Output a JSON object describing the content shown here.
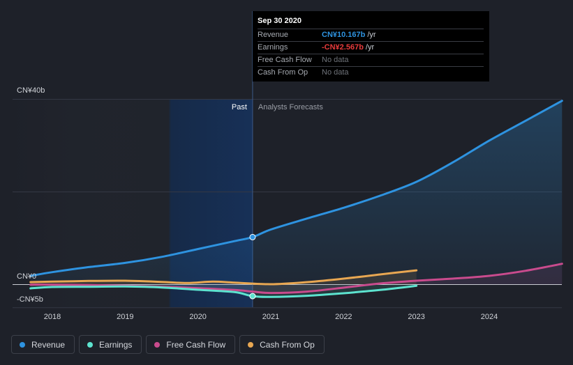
{
  "chart_data": {
    "type": "line",
    "y_unit": "CN¥ billions",
    "ylim": [
      -5,
      40
    ],
    "y_ticks": [
      {
        "value": 40,
        "label": "CN¥40b"
      },
      {
        "value": 0,
        "label": "CN¥0"
      },
      {
        "value": -5,
        "label": "-CN¥5b"
      }
    ],
    "xlim": [
      2017.7,
      2025.0
    ],
    "x_ticks": [
      {
        "value": 2018,
        "label": "2018"
      },
      {
        "value": 2019,
        "label": "2019"
      },
      {
        "value": 2020,
        "label": "2020"
      },
      {
        "value": 2021,
        "label": "2021"
      },
      {
        "value": 2022,
        "label": "2022"
      },
      {
        "value": 2023,
        "label": "2023"
      },
      {
        "value": 2024,
        "label": "2024"
      }
    ],
    "divider_x": 2020.75,
    "past_label": "Past",
    "forecast_label": "Analysts Forecasts",
    "series": [
      {
        "name": "Revenue",
        "color": "#2e93e0",
        "points": [
          [
            2017.7,
            1.8
          ],
          [
            2018.0,
            2.6
          ],
          [
            2018.5,
            3.7
          ],
          [
            2019.0,
            4.6
          ],
          [
            2019.5,
            5.9
          ],
          [
            2020.0,
            7.6
          ],
          [
            2020.5,
            9.3
          ],
          [
            2020.75,
            10.167
          ],
          [
            2021.0,
            11.8
          ],
          [
            2021.5,
            14.2
          ],
          [
            2022.0,
            16.5
          ],
          [
            2022.5,
            19.1
          ],
          [
            2023.0,
            22.1
          ],
          [
            2023.5,
            26.3
          ],
          [
            2024.0,
            31.0
          ],
          [
            2024.5,
            35.3
          ],
          [
            2025.0,
            39.6
          ]
        ]
      },
      {
        "name": "Earnings",
        "color": "#5de3cf",
        "points": [
          [
            2017.7,
            -0.9
          ],
          [
            2018.0,
            -0.6
          ],
          [
            2018.5,
            -0.55
          ],
          [
            2019.0,
            -0.5
          ],
          [
            2019.5,
            -0.7
          ],
          [
            2020.0,
            -1.2
          ],
          [
            2020.5,
            -1.7
          ],
          [
            2020.75,
            -2.567
          ],
          [
            2021.0,
            -2.75
          ],
          [
            2021.5,
            -2.5
          ],
          [
            2022.0,
            -1.95
          ],
          [
            2022.5,
            -1.25
          ],
          [
            2023.0,
            -0.35
          ]
        ]
      },
      {
        "name": "Free Cash Flow",
        "color": "#c94b8d",
        "points": [
          [
            2017.7,
            -0.1
          ],
          [
            2018.0,
            -0.1
          ],
          [
            2018.5,
            -0.2
          ],
          [
            2019.0,
            -0.35
          ],
          [
            2019.5,
            -0.55
          ],
          [
            2020.0,
            -0.85
          ],
          [
            2020.5,
            -1.25
          ],
          [
            2020.75,
            -1.6
          ],
          [
            2021.0,
            -1.9
          ],
          [
            2021.5,
            -1.6
          ],
          [
            2022.0,
            -0.75
          ],
          [
            2022.5,
            0.15
          ],
          [
            2023.0,
            0.75
          ],
          [
            2023.5,
            1.2
          ],
          [
            2024.0,
            1.8
          ],
          [
            2024.5,
            2.9
          ],
          [
            2025.0,
            4.4
          ]
        ]
      },
      {
        "name": "Cash From Op",
        "color": "#e8a752",
        "points": [
          [
            2017.7,
            0.45
          ],
          [
            2018.0,
            0.55
          ],
          [
            2018.5,
            0.7
          ],
          [
            2019.0,
            0.75
          ],
          [
            2019.5,
            0.5
          ],
          [
            2019.85,
            0.25
          ],
          [
            2020.2,
            0.55
          ],
          [
            2020.5,
            0.35
          ],
          [
            2021.0,
            0.0
          ],
          [
            2021.5,
            0.45
          ],
          [
            2022.0,
            1.2
          ],
          [
            2022.5,
            2.1
          ],
          [
            2023.0,
            3.0
          ]
        ]
      }
    ]
  },
  "tooltip": {
    "date": "Sep 30 2020",
    "rows": [
      {
        "label": "Revenue",
        "value": "CN¥10.167b",
        "unit": "/yr",
        "color": "#2e93e0"
      },
      {
        "label": "Earnings",
        "value": "-CN¥2.567b",
        "unit": "/yr",
        "color": "#e83b3b"
      },
      {
        "label": "Free Cash Flow",
        "value": "No data",
        "unit": ""
      },
      {
        "label": "Cash From Op",
        "value": "No data",
        "unit": ""
      }
    ]
  },
  "legend": [
    {
      "label": "Revenue",
      "color": "#2e93e0"
    },
    {
      "label": "Earnings",
      "color": "#5de3cf"
    },
    {
      "label": "Free Cash Flow",
      "color": "#c94b8d"
    },
    {
      "label": "Cash From Op",
      "color": "#e8a752"
    }
  ]
}
